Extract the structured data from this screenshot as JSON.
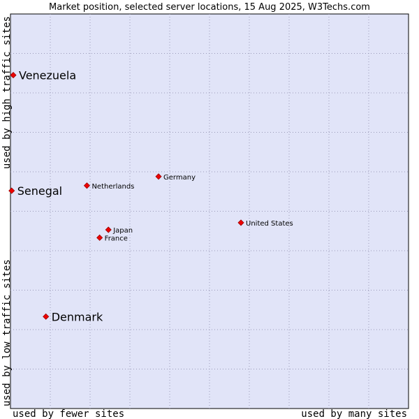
{
  "chart_data": {
    "type": "scatter",
    "title": "Market position, selected server locations, 15 Aug 2025, W3Techs.com",
    "xlabel_left": "used by fewer sites",
    "xlabel_right": "used by many sites",
    "ylabel_bottom": "used by low traffic sites",
    "ylabel_top": "used by high traffic sites",
    "xlim": [
      0,
      100
    ],
    "ylim": [
      0,
      100
    ],
    "grid": true,
    "colors": {
      "plot_background": "#e1e4f8",
      "grid": "#9a9ab8",
      "marker": "#ee0000",
      "marker_edge": "#990000"
    },
    "points": [
      {
        "label": "Venezuela",
        "x": 0.7,
        "y": 84.5,
        "emphasis": true,
        "label_side": "right"
      },
      {
        "label": "Senegal",
        "x": 0.3,
        "y": 55.2,
        "emphasis": true,
        "label_side": "right"
      },
      {
        "label": "Denmark",
        "x": 8.9,
        "y": 23.3,
        "emphasis": true,
        "label_side": "right"
      },
      {
        "label": "Germany",
        "x": 37.2,
        "y": 58.8,
        "emphasis": false,
        "label_side": "right"
      },
      {
        "label": "Netherlands",
        "x": 19.2,
        "y": 56.5,
        "emphasis": false,
        "label_side": "right"
      },
      {
        "label": "United States",
        "x": 57.9,
        "y": 47.1,
        "emphasis": false,
        "label_side": "right"
      },
      {
        "label": "Japan",
        "x": 24.6,
        "y": 45.3,
        "emphasis": false,
        "label_side": "right"
      },
      {
        "label": "France",
        "x": 22.4,
        "y": 43.3,
        "emphasis": false,
        "label_side": "right"
      }
    ]
  }
}
